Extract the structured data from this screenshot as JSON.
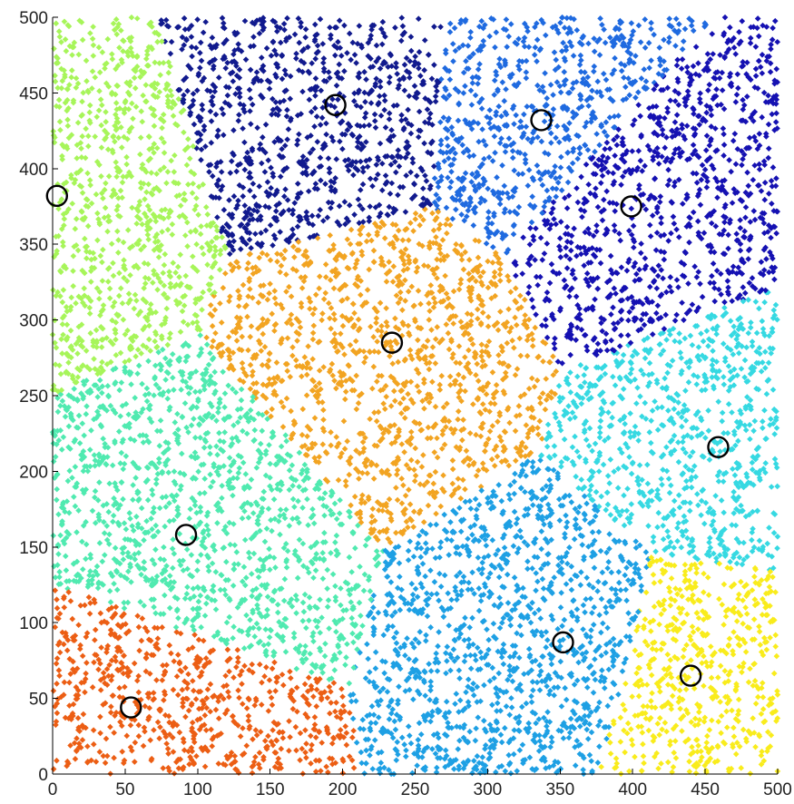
{
  "chart_data": {
    "type": "scatter",
    "title": "",
    "xlabel": "",
    "ylabel": "",
    "xlim": [
      0,
      500
    ],
    "ylim": [
      0,
      500
    ],
    "xticks": [
      0,
      50,
      100,
      150,
      200,
      250,
      300,
      350,
      400,
      450,
      500
    ],
    "yticks": [
      0,
      50,
      100,
      150,
      200,
      250,
      300,
      350,
      400,
      450,
      500
    ],
    "grid": false,
    "legend": "none",
    "points_per_cluster_approx": 900,
    "clusters": [
      {
        "centroid": [
          3,
          382
        ],
        "color": "#a7f55a"
      },
      {
        "centroid": [
          195,
          442
        ],
        "color": "#111a8e"
      },
      {
        "centroid": [
          337,
          432
        ],
        "color": "#1f6ae0"
      },
      {
        "centroid": [
          399,
          375
        ],
        "color": "#1511b2"
      },
      {
        "centroid": [
          234,
          285
        ],
        "color": "#f2a422"
      },
      {
        "centroid": [
          459,
          216
        ],
        "color": "#36d9e2"
      },
      {
        "centroid": [
          92,
          158
        ],
        "color": "#50eab0"
      },
      {
        "centroid": [
          352,
          87
        ],
        "color": "#1ea0e4"
      },
      {
        "centroid": [
          440,
          65
        ],
        "color": "#f9ec1c"
      },
      {
        "centroid": [
          54,
          44
        ],
        "color": "#ec5e14"
      }
    ]
  }
}
